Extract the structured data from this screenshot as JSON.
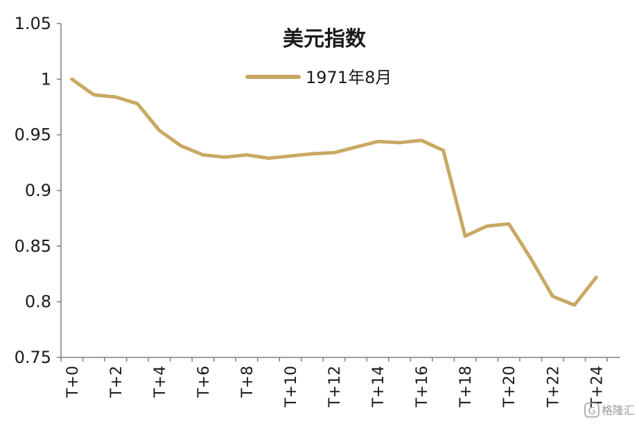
{
  "chart_data": {
    "type": "line",
    "title": "美元指数",
    "xlabel": "",
    "ylabel": "",
    "ylim": [
      0.75,
      1.05
    ],
    "yticks": [
      "0.75",
      "0.8",
      "0.85",
      "0.9",
      "0.95",
      "1",
      "1.05"
    ],
    "ytick_values": [
      0.75,
      0.8,
      0.85,
      0.9,
      0.95,
      1.0,
      1.05
    ],
    "x": [
      "T+0",
      "T+1",
      "T+2",
      "T+3",
      "T+4",
      "T+5",
      "T+6",
      "T+7",
      "T+8",
      "T+9",
      "T+10",
      "T+11",
      "T+12",
      "T+13",
      "T+14",
      "T+15",
      "T+16",
      "T+17",
      "T+18",
      "T+19",
      "T+20",
      "T+21",
      "T+22",
      "T+23",
      "T+24"
    ],
    "xtick_labels": [
      "T+0",
      "T+2",
      "T+4",
      "T+6",
      "T+8",
      "T+10",
      "T+12",
      "T+14",
      "T+16",
      "T+18",
      "T+20",
      "T+22",
      "T+24"
    ],
    "series": [
      {
        "name": "1971年8月",
        "color": "#C9A862",
        "values": [
          1.0,
          0.986,
          0.984,
          0.978,
          0.954,
          0.94,
          0.932,
          0.93,
          0.932,
          0.929,
          0.931,
          0.933,
          0.934,
          0.939,
          0.944,
          0.943,
          0.945,
          0.936,
          0.859,
          0.868,
          0.87,
          0.839,
          0.805,
          0.797,
          0.822
        ]
      }
    ],
    "grid": false,
    "legend_position": "top-center"
  },
  "watermark": {
    "icon": "g-logo-icon",
    "text": "格隆汇"
  }
}
